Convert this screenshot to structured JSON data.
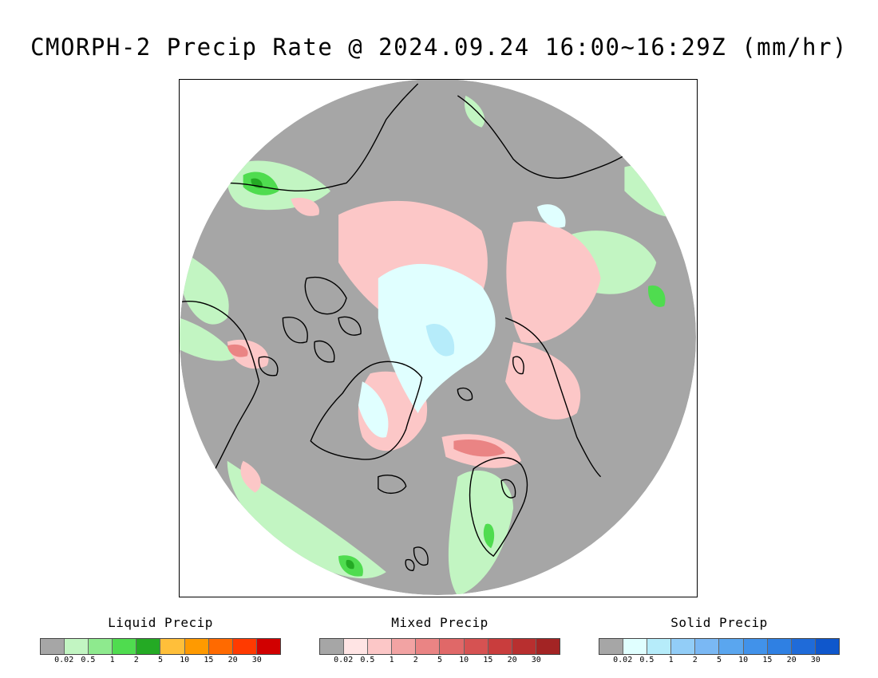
{
  "title": "CMORPH-2 Precip Rate @ 2024.09.24 16:00~16:29Z (mm/hr)",
  "legends": [
    {
      "title": "Liquid Precip",
      "ticks": [
        "0.02",
        "0.5",
        "1",
        "2",
        "5",
        "10",
        "15",
        "20",
        "30"
      ],
      "colors": [
        "#a6a6a6",
        "#c2f5c2",
        "#8eea8e",
        "#4fdc4f",
        "#24aa24",
        "#ffbf3a",
        "#ff9a00",
        "#ff6a00",
        "#ff3a00",
        "#d10000"
      ]
    },
    {
      "title": "Mixed Precip",
      "ticks": [
        "0.02",
        "0.5",
        "1",
        "2",
        "5",
        "10",
        "15",
        "20",
        "30"
      ],
      "colors": [
        "#a6a6a6",
        "#ffe4e4",
        "#fcc7c7",
        "#f2a3a3",
        "#ea8484",
        "#e06868",
        "#d65252",
        "#c93d3d",
        "#b82f2f",
        "#a32424"
      ]
    },
    {
      "title": "Solid Precip",
      "ticks": [
        "0.02",
        "0.5",
        "1",
        "2",
        "5",
        "10",
        "15",
        "20",
        "30"
      ],
      "colors": [
        "#a6a6a6",
        "#e0ffff",
        "#b6ecfa",
        "#92cdf7",
        "#7ab8f4",
        "#5aa6ef",
        "#4192ea",
        "#2f80e3",
        "#1f6bd9",
        "#0f57cc"
      ]
    }
  ],
  "map": {
    "background_color": "#a6a6a6",
    "coastline_color": "#000000"
  }
}
